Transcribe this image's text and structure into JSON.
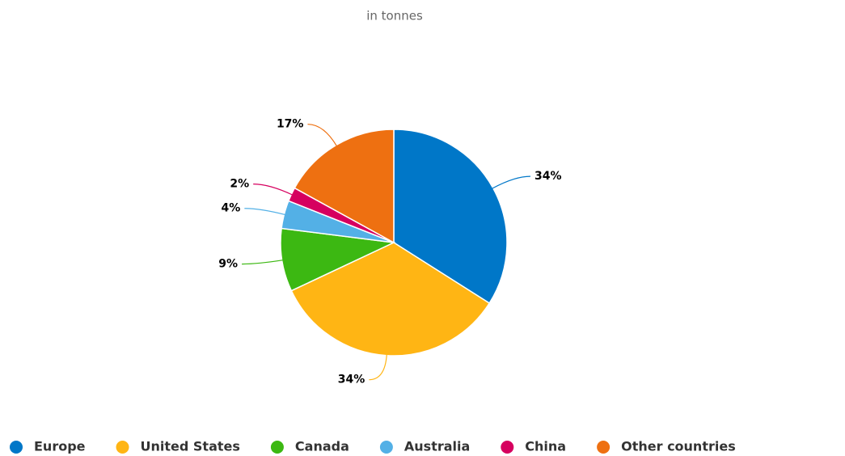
{
  "chart_data": {
    "type": "pie",
    "subtitle": "in tonnes",
    "categories": [
      "Europe",
      "United States",
      "Canada",
      "Australia",
      "China",
      "Other countries"
    ],
    "values": [
      34,
      34,
      9,
      4,
      2,
      17
    ],
    "value_labels": [
      "34%",
      "34%",
      "9%",
      "4%",
      "2%",
      "17%"
    ],
    "colors": [
      "#0077c8",
      "#ffb514",
      "#3cb812",
      "#53b0e6",
      "#d6005f",
      "#ee7011"
    ],
    "legend": "bottom"
  }
}
